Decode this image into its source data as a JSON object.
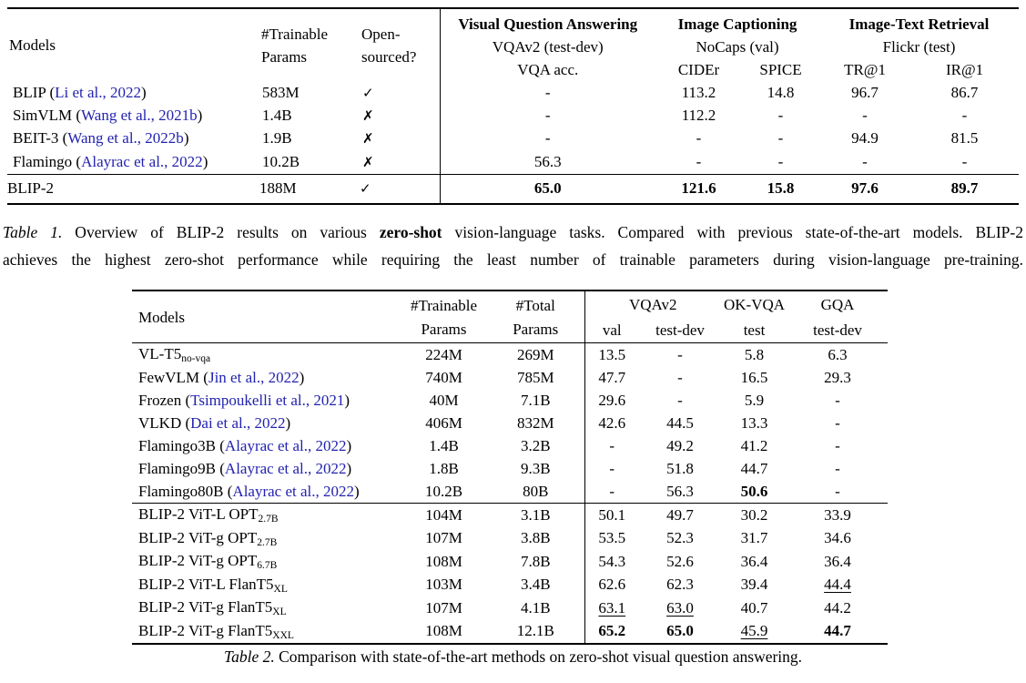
{
  "symbols": {
    "check": "✓",
    "cross": "✗"
  },
  "colors": {
    "citation_blue": "#2222b0",
    "text": "#000000",
    "background": "#ffffff",
    "rule": "#000000"
  },
  "table1": {
    "header": {
      "models": "Models",
      "trainable_line1": "#Trainable",
      "trainable_line2": "Params",
      "open_line1": "Open-",
      "open_line2": "sourced?",
      "groups": [
        {
          "title": "Visual Question Answering",
          "subtitle": "VQAv2 (test-dev)",
          "cols": [
            "VQA acc."
          ]
        },
        {
          "title": "Image Captioning",
          "subtitle": "NoCaps (val)",
          "cols": [
            "CIDEr",
            "SPICE"
          ]
        },
        {
          "title": "Image-Text Retrieval",
          "subtitle": "Flickr (test)",
          "cols": [
            "TR@1",
            "IR@1"
          ]
        }
      ]
    },
    "rows": [
      {
        "model": [
          {
            "t": "BLIP ("
          },
          {
            "t": "Li et al., 2022",
            "c": 1
          },
          {
            "t": ")"
          }
        ],
        "trainable": "583M",
        "open": "check",
        "cells": [
          "-",
          "113.2",
          "14.8",
          "96.7",
          "86.7"
        ]
      },
      {
        "model": [
          {
            "t": "SimVLM ("
          },
          {
            "t": "Wang et al., 2021b",
            "c": 1
          },
          {
            "t": ")"
          }
        ],
        "trainable": "1.4B",
        "open": "cross",
        "cells": [
          "-",
          "112.2",
          "-",
          "-",
          "-"
        ]
      },
      {
        "model": [
          {
            "t": "BEIT-3 ("
          },
          {
            "t": "Wang et al., 2022b",
            "c": 1
          },
          {
            "t": ")"
          }
        ],
        "trainable": "1.9B",
        "open": "cross",
        "cells": [
          "-",
          "-",
          "-",
          "94.9",
          "81.5"
        ]
      },
      {
        "model": [
          {
            "t": "Flamingo ("
          },
          {
            "t": "Alayrac et al., 2022",
            "c": 1
          },
          {
            "t": ")"
          }
        ],
        "trainable": "10.2B",
        "open": "cross",
        "cells": [
          "56.3",
          "-",
          "-",
          "-",
          "-"
        ]
      }
    ],
    "final_row": {
      "model": [
        {
          "t": "BLIP-2"
        }
      ],
      "trainable": "188M",
      "open": "check",
      "cells": [
        {
          "v": "65.0",
          "b": 1
        },
        {
          "v": "121.6",
          "b": 1
        },
        {
          "v": "15.8",
          "b": 1
        },
        {
          "v": "97.6",
          "b": 1
        },
        {
          "v": "89.7",
          "b": 1
        }
      ]
    }
  },
  "caption1": [
    {
      "t": "Table 1.",
      "i": 1
    },
    {
      "t": " Overview of BLIP-2 results on various "
    },
    {
      "t": "zero-shot",
      "b": 1
    },
    {
      "t": " vision-language tasks. Compared with previous state-of-the-art models. BLIP-2"
    },
    {
      "br": 1
    },
    {
      "t": "achieves the highest zero-shot performance while requiring the least number of trainable parameters during vision-language pre-training."
    }
  ],
  "table2": {
    "header": {
      "models": "Models",
      "trainable_line1": "#Trainable",
      "trainable_line2": "Params",
      "total_line1": "#Total",
      "total_line2": "Params",
      "groups": [
        {
          "title": "VQAv2",
          "cols": [
            "val",
            "test-dev"
          ]
        },
        {
          "title": "OK-VQA",
          "cols": [
            "test"
          ]
        },
        {
          "title": "GQA",
          "cols": [
            "test-dev"
          ]
        }
      ]
    },
    "rows_sota": [
      {
        "model": [
          {
            "t": "VL-T5"
          },
          {
            "t": "no-vqa",
            "s": 1
          }
        ],
        "trainable": "224M",
        "total": "269M",
        "cells": [
          "13.5",
          "-",
          "5.8",
          "6.3"
        ]
      },
      {
        "model": [
          {
            "t": "FewVLM ("
          },
          {
            "t": "Jin et al., 2022",
            "c": 1
          },
          {
            "t": ")"
          }
        ],
        "trainable": "740M",
        "total": "785M",
        "cells": [
          "47.7",
          "-",
          "16.5",
          "29.3"
        ]
      },
      {
        "model": [
          {
            "t": "Frozen ("
          },
          {
            "t": "Tsimpoukelli et al., 2021",
            "c": 1
          },
          {
            "t": ")"
          }
        ],
        "trainable": "40M",
        "total": "7.1B",
        "cells": [
          "29.6",
          "-",
          "5.9",
          "-"
        ]
      },
      {
        "model": [
          {
            "t": "VLKD ("
          },
          {
            "t": "Dai et al., 2022",
            "c": 1
          },
          {
            "t": ")"
          }
        ],
        "trainable": "406M",
        "total": "832M",
        "cells": [
          "42.6",
          "44.5",
          "13.3",
          "-"
        ]
      },
      {
        "model": [
          {
            "t": "Flamingo3B ("
          },
          {
            "t": "Alayrac et al., 2022",
            "c": 1
          },
          {
            "t": ")"
          }
        ],
        "trainable": "1.4B",
        "total": "3.2B",
        "cells": [
          "-",
          "49.2",
          "41.2",
          "-"
        ]
      },
      {
        "model": [
          {
            "t": "Flamingo9B ("
          },
          {
            "t": "Alayrac et al., 2022",
            "c": 1
          },
          {
            "t": ")"
          }
        ],
        "trainable": "1.8B",
        "total": "9.3B",
        "cells": [
          "-",
          "51.8",
          "44.7",
          "-"
        ]
      },
      {
        "model": [
          {
            "t": "Flamingo80B ("
          },
          {
            "t": "Alayrac et al., 2022",
            "c": 1
          },
          {
            "t": ")"
          }
        ],
        "trainable": "10.2B",
        "total": "80B",
        "cells": [
          "-",
          "56.3",
          {
            "v": "50.6",
            "b": 1
          },
          "-"
        ]
      }
    ],
    "rows_blip2": [
      {
        "model": [
          {
            "t": "BLIP-2 ViT-L OPT"
          },
          {
            "t": "2.7B",
            "s": 1
          }
        ],
        "trainable": "104M",
        "total": "3.1B",
        "cells": [
          "50.1",
          "49.7",
          "30.2",
          "33.9"
        ]
      },
      {
        "model": [
          {
            "t": "BLIP-2 ViT-g OPT"
          },
          {
            "t": "2.7B",
            "s": 1
          }
        ],
        "trainable": "107M",
        "total": "3.8B",
        "cells": [
          "53.5",
          "52.3",
          "31.7",
          "34.6"
        ]
      },
      {
        "model": [
          {
            "t": "BLIP-2 ViT-g OPT"
          },
          {
            "t": "6.7B",
            "s": 1
          }
        ],
        "trainable": "108M",
        "total": "7.8B",
        "cells": [
          "54.3",
          "52.6",
          "36.4",
          "36.4"
        ]
      },
      {
        "model": [
          {
            "t": "BLIP-2 ViT-L FlanT5"
          },
          {
            "t": "XL",
            "s": 1
          }
        ],
        "trainable": "103M",
        "total": "3.4B",
        "cells": [
          "62.6",
          "62.3",
          "39.4",
          {
            "v": "44.4",
            "u": 1
          }
        ]
      },
      {
        "model": [
          {
            "t": "BLIP-2 ViT-g FlanT5"
          },
          {
            "t": "XL",
            "s": 1
          }
        ],
        "trainable": "107M",
        "total": "4.1B",
        "cells": [
          {
            "v": "63.1",
            "u": 1
          },
          {
            "v": "63.0",
            "u": 1
          },
          "40.7",
          "44.2"
        ]
      },
      {
        "model": [
          {
            "t": "BLIP-2 ViT-g FlanT5"
          },
          {
            "t": "XXL",
            "s": 1
          }
        ],
        "trainable": "108M",
        "total": "12.1B",
        "cells": [
          {
            "v": "65.2",
            "b": 1
          },
          {
            "v": "65.0",
            "b": 1
          },
          {
            "v": "45.9",
            "u": 1
          },
          {
            "v": "44.7",
            "b": 1
          }
        ]
      }
    ]
  },
  "caption2": [
    {
      "t": "Table 2.",
      "i": 1
    },
    {
      "t": " Comparison with state-of-the-art methods on zero-shot visual question answering."
    }
  ]
}
